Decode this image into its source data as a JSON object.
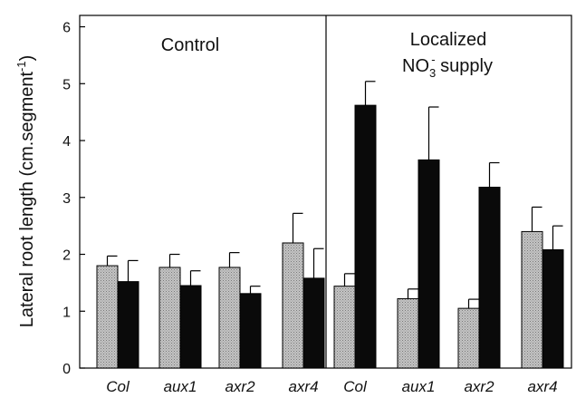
{
  "chart_data": {
    "type": "bar",
    "ylabel": "Lateral root length (cm.segment",
    "ylabel_sup": "-1",
    "ylabel_tail": ")",
    "ylim": [
      0,
      6.2
    ],
    "yticks": [
      0,
      1,
      2,
      3,
      4,
      5,
      6
    ],
    "grid": false,
    "panels": [
      {
        "title_lines": [
          "Control"
        ],
        "categories": [
          "Col",
          "aux1",
          "axr2",
          "axr4"
        ],
        "series": [
          {
            "pattern": "stippled-gray",
            "values": [
              1.8,
              1.77,
              1.77,
              2.2
            ],
            "errors": [
              0.17,
              0.23,
              0.26,
              0.52
            ]
          },
          {
            "pattern": "solid-black",
            "values": [
              1.52,
              1.45,
              1.31,
              1.58
            ],
            "errors": [
              0.37,
              0.26,
              0.13,
              0.52
            ]
          }
        ]
      },
      {
        "title_lines": [
          "Localized",
          "NO",
          "3",
          "-",
          " supply"
        ],
        "categories": [
          "Col",
          "aux1",
          "axr2",
          "axr4"
        ],
        "series": [
          {
            "pattern": "stippled-gray",
            "values": [
              1.44,
              1.22,
              1.05,
              2.4
            ],
            "errors": [
              0.22,
              0.17,
              0.16,
              0.43
            ]
          },
          {
            "pattern": "solid-black",
            "values": [
              4.62,
              3.66,
              3.18,
              2.08
            ],
            "errors": [
              0.42,
              0.93,
              0.43,
              0.42
            ]
          }
        ]
      }
    ]
  }
}
